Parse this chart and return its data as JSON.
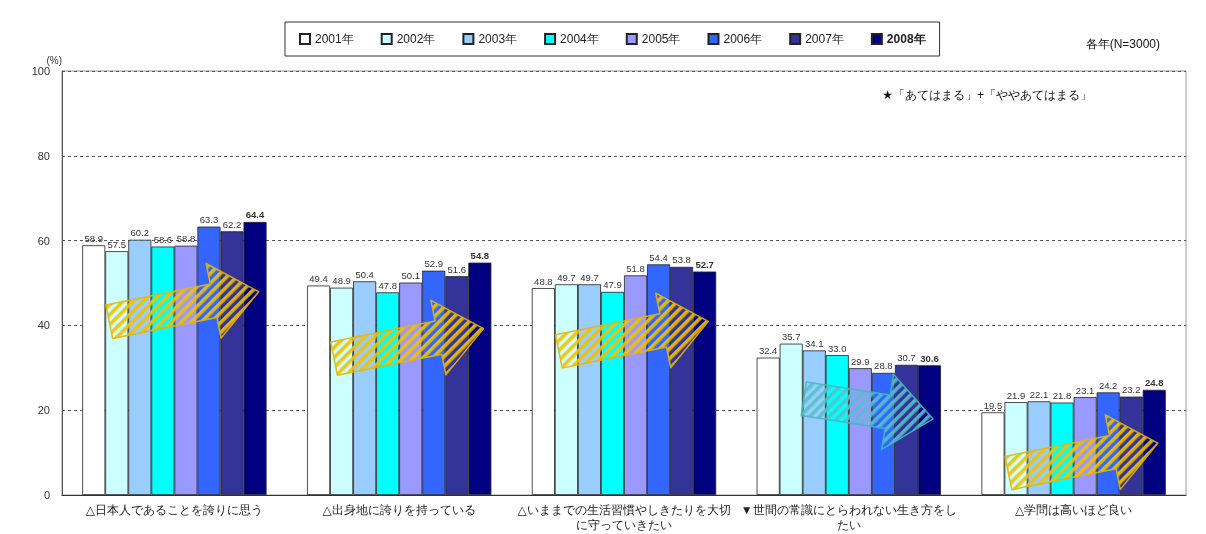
{
  "chart_data": {
    "type": "bar",
    "categories": [
      "△日本人であることを誇りに思う",
      "△出身地に誇りを持っている",
      "△いままでの生活習慣やしきたりを大切に守っていきたい",
      "▼世間の常識にとらわれない生き方をしたい",
      "△学問は高いほど良い"
    ],
    "series": [
      {
        "name": "2001年",
        "color": "#ffffff",
        "values": [
          58.9,
          49.4,
          48.8,
          32.4,
          19.5
        ],
        "value_labels": [
          "58.9",
          "49.4",
          "48.8",
          "32.4",
          "19.5"
        ]
      },
      {
        "name": "2002年",
        "color": "#ccffff",
        "values": [
          57.5,
          48.9,
          49.7,
          35.7,
          21.9
        ],
        "value_labels": [
          "57.5",
          "48.9",
          "49.7",
          "35.7",
          "21.9"
        ]
      },
      {
        "name": "2003年",
        "color": "#99ccff",
        "values": [
          60.2,
          50.4,
          49.7,
          34.1,
          22.1
        ],
        "value_labels": [
          "60.2",
          "50.4",
          "49.7",
          "34.1",
          "22.1"
        ]
      },
      {
        "name": "2004年",
        "color": "#00ffff",
        "values": [
          58.6,
          47.8,
          47.9,
          33.0,
          21.8
        ],
        "value_labels": [
          "58.6",
          "47.8",
          "47.9",
          "33.0",
          "21.8"
        ]
      },
      {
        "name": "2005年",
        "color": "#9999ff",
        "values": [
          58.8,
          50.1,
          51.8,
          29.9,
          23.1
        ],
        "value_labels": [
          "58.8",
          "50.1",
          "51.8",
          "29.9",
          "23.1"
        ]
      },
      {
        "name": "2006年",
        "color": "#3366ff",
        "values": [
          63.3,
          52.9,
          54.4,
          28.8,
          24.2
        ],
        "value_labels": [
          "63.3",
          "52.9",
          "54.4",
          "28.8",
          "24.2"
        ]
      },
      {
        "name": "2007年",
        "color": "#333399",
        "values": [
          62.2,
          51.6,
          53.8,
          30.7,
          23.2
        ],
        "value_labels": [
          "62.2",
          "51.6",
          "53.8",
          "30.7",
          "23.2"
        ]
      },
      {
        "name": "2008年",
        "color": "#000080",
        "values": [
          64.4,
          54.8,
          52.7,
          30.6,
          24.8
        ],
        "value_labels": [
          "64.4",
          "54.8",
          "52.7",
          "30.6",
          "24.8"
        ]
      }
    ],
    "ylabel": "(%)",
    "ylim": [
      0,
      100
    ],
    "yticks": [
      0,
      20,
      40,
      60,
      80,
      100
    ],
    "grid": "y",
    "legend": "top",
    "annotations": [
      "各年(N=3000)",
      "★「あてはまる」+「ややあてはまる」"
    ]
  }
}
